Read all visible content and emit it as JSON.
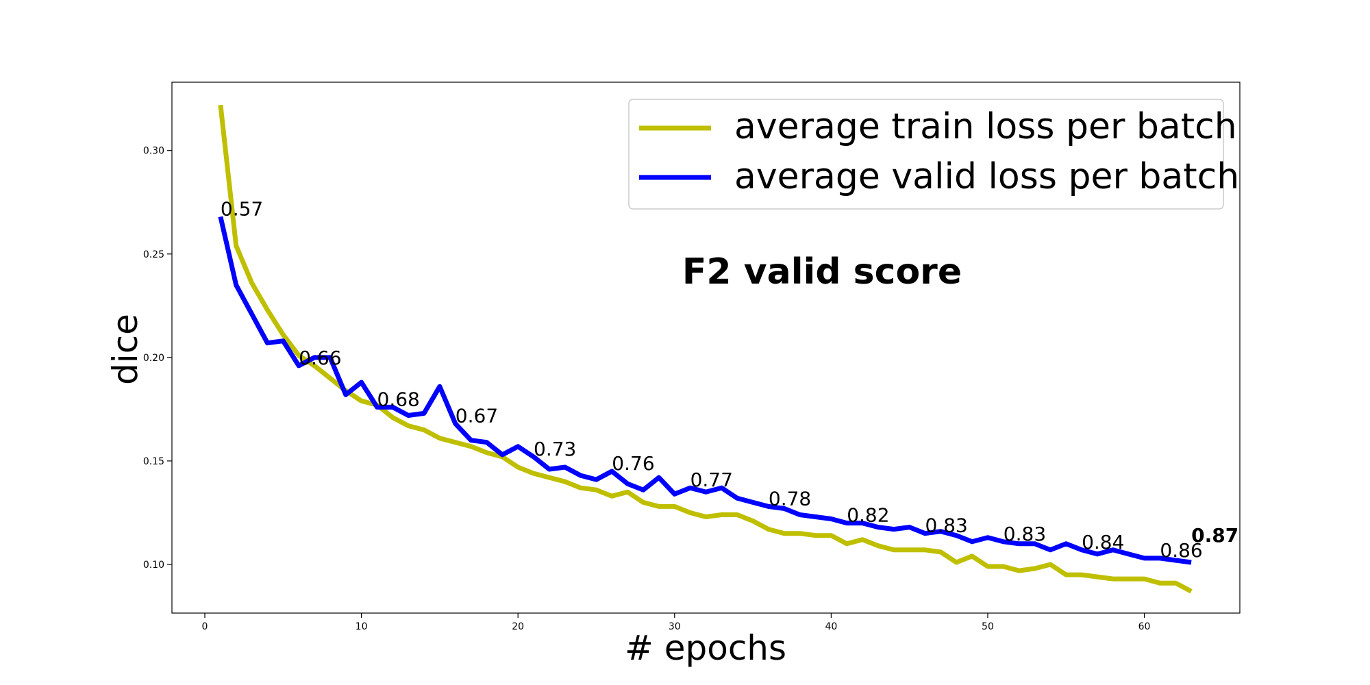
{
  "chart_data": {
    "type": "line",
    "xlabel": "# epochs",
    "ylabel": "dice",
    "annotation_title": "F2 valid score",
    "xlim": [
      -2.1,
      66.1
    ],
    "ylim": [
      0.0765,
      0.333
    ],
    "xticks": [
      0,
      10,
      20,
      30,
      40,
      50,
      60
    ],
    "yticks": [
      0.1,
      0.15,
      0.2,
      0.25,
      0.3
    ],
    "grid": false,
    "legend_position": "top-right",
    "series": [
      {
        "name": "average train loss per batch",
        "color": "#bfbf00",
        "x": [
          1,
          2,
          3,
          4,
          5,
          6,
          7,
          8,
          9,
          10,
          11,
          12,
          13,
          14,
          15,
          16,
          17,
          18,
          19,
          20,
          21,
          22,
          23,
          24,
          25,
          26,
          27,
          28,
          29,
          30,
          31,
          32,
          33,
          34,
          35,
          36,
          37,
          38,
          39,
          40,
          41,
          42,
          43,
          44,
          45,
          46,
          47,
          48,
          49,
          50,
          51,
          52,
          53,
          54,
          55,
          56,
          57,
          58,
          59,
          60,
          61,
          62,
          63
        ],
        "values": [
          0.322,
          0.254,
          0.236,
          0.223,
          0.211,
          0.201,
          0.196,
          0.19,
          0.184,
          0.179,
          0.177,
          0.171,
          0.167,
          0.165,
          0.161,
          0.159,
          0.157,
          0.154,
          0.152,
          0.147,
          0.144,
          0.142,
          0.14,
          0.137,
          0.136,
          0.133,
          0.135,
          0.13,
          0.128,
          0.128,
          0.125,
          0.123,
          0.124,
          0.124,
          0.121,
          0.117,
          0.115,
          0.115,
          0.114,
          0.114,
          0.11,
          0.112,
          0.109,
          0.107,
          0.107,
          0.107,
          0.106,
          0.101,
          0.104,
          0.099,
          0.099,
          0.097,
          0.098,
          0.1,
          0.095,
          0.095,
          0.094,
          0.093,
          0.093,
          0.093,
          0.091,
          0.091,
          0.087
        ]
      },
      {
        "name": "average valid loss per batch",
        "color": "#0000ff",
        "x": [
          1,
          2,
          3,
          4,
          5,
          6,
          7,
          8,
          9,
          10,
          11,
          12,
          13,
          14,
          15,
          16,
          17,
          18,
          19,
          20,
          21,
          22,
          23,
          24,
          25,
          26,
          27,
          28,
          29,
          30,
          31,
          32,
          33,
          34,
          35,
          36,
          37,
          38,
          39,
          40,
          41,
          42,
          43,
          44,
          45,
          46,
          47,
          48,
          49,
          50,
          51,
          52,
          53,
          54,
          55,
          56,
          57,
          58,
          59,
          60,
          61,
          62,
          63
        ],
        "values": [
          0.268,
          0.235,
          0.221,
          0.207,
          0.208,
          0.196,
          0.2,
          0.2,
          0.182,
          0.188,
          0.176,
          0.176,
          0.172,
          0.173,
          0.186,
          0.168,
          0.16,
          0.159,
          0.153,
          0.157,
          0.152,
          0.146,
          0.147,
          0.143,
          0.141,
          0.145,
          0.139,
          0.136,
          0.142,
          0.134,
          0.137,
          0.135,
          0.137,
          0.132,
          0.13,
          0.128,
          0.127,
          0.124,
          0.123,
          0.122,
          0.12,
          0.12,
          0.118,
          0.117,
          0.118,
          0.115,
          0.116,
          0.114,
          0.111,
          0.113,
          0.111,
          0.11,
          0.11,
          0.107,
          0.11,
          0.107,
          0.105,
          0.107,
          0.105,
          0.103,
          0.103,
          0.102,
          0.101
        ]
      }
    ],
    "score_labels": [
      {
        "x": 1,
        "y": 0.268,
        "text": "0.57",
        "bold": false
      },
      {
        "x": 6,
        "y": 0.196,
        "text": "0.66",
        "bold": false
      },
      {
        "x": 11,
        "y": 0.176,
        "text": "0.68",
        "bold": false
      },
      {
        "x": 16,
        "y": 0.168,
        "text": "0.67",
        "bold": false
      },
      {
        "x": 21,
        "y": 0.152,
        "text": "0.73",
        "bold": false
      },
      {
        "x": 26,
        "y": 0.145,
        "text": "0.76",
        "bold": false
      },
      {
        "x": 31,
        "y": 0.137,
        "text": "0.77",
        "bold": false
      },
      {
        "x": 36,
        "y": 0.128,
        "text": "0.78",
        "bold": false
      },
      {
        "x": 41,
        "y": 0.12,
        "text": "0.82",
        "bold": false
      },
      {
        "x": 46,
        "y": 0.115,
        "text": "0.83",
        "bold": false
      },
      {
        "x": 51,
        "y": 0.111,
        "text": "0.83",
        "bold": false
      },
      {
        "x": 56,
        "y": 0.107,
        "text": "0.84",
        "bold": false
      },
      {
        "x": 61,
        "y": 0.103,
        "text": "0.86",
        "bold": false
      },
      {
        "x": 63,
        "y": 0.101,
        "text": "0.87",
        "bold": true
      }
    ]
  }
}
